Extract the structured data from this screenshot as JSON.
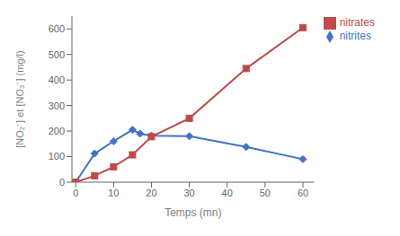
{
  "chart_data": {
    "type": "line",
    "xlabel": "Temps (mn)",
    "ylabel": "[NO₂⁻] et [NO₃⁻] (mg/l)",
    "xlim": [
      -1,
      63
    ],
    "xticks": [
      0,
      10,
      20,
      30,
      40,
      50,
      60
    ],
    "ylim": [
      0,
      650
    ],
    "yticks": [
      0,
      100,
      200,
      300,
      400,
      500,
      600
    ],
    "grid": false,
    "legend": "upper right",
    "series": [
      {
        "name": "nitrites",
        "color": "#4472C4",
        "marker": "diamond",
        "x": [
          0,
          5,
          10,
          15,
          17,
          20,
          30,
          45,
          60
        ],
        "values": [
          0,
          112,
          160,
          205,
          190,
          182,
          180,
          138,
          90
        ]
      },
      {
        "name": "nitrates",
        "color": "#BE4B48",
        "marker": "square",
        "x": [
          0,
          5,
          10,
          15,
          20,
          30,
          45,
          60
        ],
        "values": [
          0,
          25,
          60,
          107,
          178,
          250,
          445,
          605
        ]
      }
    ]
  }
}
